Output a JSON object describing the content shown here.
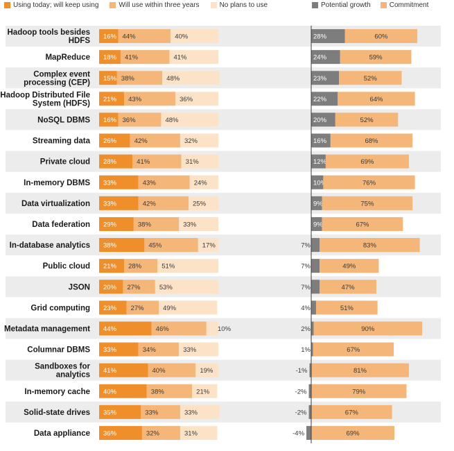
{
  "chart_data": {
    "type": "bar",
    "colors": {
      "using_today": "#ee8f2c",
      "will_use": "#f4b679",
      "no_plans": "#fce3c8",
      "potential_growth": "#7d7d7d",
      "commitment": "#f4b679",
      "row_band": "#ececec",
      "divider": "#3c3c3c"
    },
    "categories": [
      "Hadoop tools besides HDFS",
      "MapReduce",
      "Complex event processing (CEP)",
      "Hadoop Distributed File System (HDFS)",
      "NoSQL DBMS",
      "Streaming data",
      "Private cloud",
      "In-memory DBMS",
      "Data virtualization",
      "Data federation",
      "In-database analytics",
      "Public cloud",
      "JSON",
      "Grid computing",
      "Metadata management",
      "Columnar DBMS",
      "Sandboxes for analytics",
      "In-memory cache",
      "Solid-state drives",
      "Data appliance"
    ],
    "category_lines": [
      [
        "Hadoop tools besides",
        "HDFS"
      ],
      [
        "MapReduce"
      ],
      [
        "Complex event",
        "processing (CEP)"
      ],
      [
        "Hadoop Distributed File",
        "System (HDFS)"
      ],
      [
        "NoSQL DBMS"
      ],
      [
        "Streaming data"
      ],
      [
        "Private cloud"
      ],
      [
        "In-memory DBMS"
      ],
      [
        "Data virtualization"
      ],
      [
        "Data federation"
      ],
      [
        "In-database analytics"
      ],
      [
        "Public cloud"
      ],
      [
        "JSON"
      ],
      [
        "Grid computing"
      ],
      [
        "Metadata management"
      ],
      [
        "Columnar DBMS"
      ],
      [
        "Sandboxes for",
        "analytics"
      ],
      [
        "In-memory cache"
      ],
      [
        "Solid-state drives"
      ],
      [
        "Data appliance"
      ]
    ],
    "left_chart": {
      "type": "stacked-bar",
      "unit": "%",
      "series": [
        {
          "name": "Using today; will keep using",
          "values": [
            16,
            18,
            15,
            21,
            16,
            26,
            28,
            33,
            33,
            29,
            38,
            21,
            20,
            23,
            44,
            33,
            41,
            40,
            35,
            36
          ]
        },
        {
          "name": "Will use within three years",
          "values": [
            44,
            41,
            38,
            43,
            36,
            42,
            41,
            43,
            42,
            38,
            45,
            28,
            27,
            27,
            46,
            34,
            40,
            38,
            33,
            32
          ]
        },
        {
          "name": "No plans to use",
          "values": [
            40,
            41,
            48,
            36,
            48,
            32,
            31,
            24,
            25,
            33,
            17,
            51,
            53,
            49,
            10,
            33,
            19,
            21,
            33,
            31
          ]
        }
      ]
    },
    "right_chart": {
      "type": "stacked-bar",
      "unit": "%",
      "series": [
        {
          "name": "Potential growth",
          "values": [
            28,
            24,
            23,
            22,
            20,
            16,
            12,
            10,
            9,
            9,
            7,
            7,
            7,
            4,
            2,
            1,
            -1,
            -2,
            -2,
            -4
          ]
        },
        {
          "name": "Commitment",
          "values": [
            60,
            59,
            52,
            64,
            52,
            68,
            69,
            76,
            75,
            67,
            83,
            49,
            47,
            51,
            90,
            67,
            81,
            79,
            67,
            69
          ]
        }
      ]
    }
  }
}
